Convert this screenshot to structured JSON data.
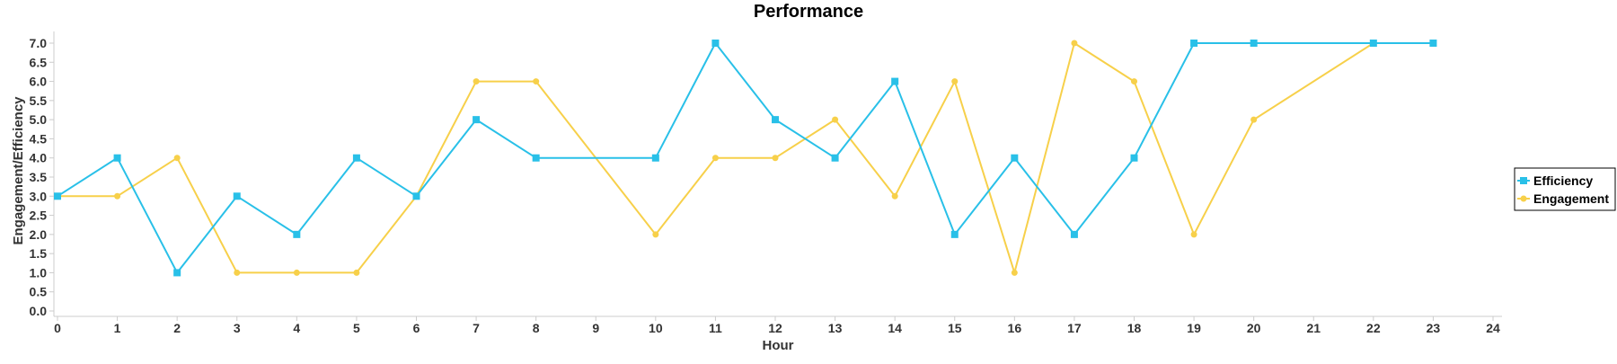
{
  "chart_data": {
    "type": "line",
    "title": "Performance",
    "xlabel": "Hour",
    "ylabel": "Engagement/Efficiency",
    "xlim": [
      0,
      24
    ],
    "ylim": [
      0,
      7.0
    ],
    "x_ticks": [
      0,
      1,
      2,
      3,
      4,
      5,
      6,
      7,
      8,
      9,
      10,
      11,
      12,
      13,
      14,
      15,
      16,
      17,
      18,
      19,
      20,
      21,
      22,
      23,
      24
    ],
    "y_ticks": [
      "0.0",
      "0.5",
      "1.0",
      "1.5",
      "2.0",
      "2.5",
      "3.0",
      "3.5",
      "4.0",
      "4.5",
      "5.0",
      "5.5",
      "6.0",
      "6.5",
      "7.0"
    ],
    "grid": false,
    "legend_position": "right",
    "series": [
      {
        "name": "Efficiency",
        "color": "#29c0e8",
        "marker": "square",
        "x": [
          0,
          1,
          2,
          3,
          4,
          5,
          6,
          7,
          8,
          10,
          11,
          12,
          13,
          14,
          15,
          16,
          17,
          18,
          19,
          20,
          22,
          23
        ],
        "y": [
          3,
          4,
          1,
          3,
          2,
          4,
          3,
          5,
          4,
          4,
          7,
          5,
          4,
          6,
          2,
          4,
          2,
          4,
          7,
          7,
          7,
          7
        ]
      },
      {
        "name": "Engagement",
        "color": "#f7d04a",
        "marker": "circle",
        "x": [
          0,
          1,
          2,
          3,
          4,
          5,
          6,
          7,
          8,
          10,
          11,
          12,
          13,
          14,
          15,
          16,
          17,
          18,
          19,
          20,
          22
        ],
        "y": [
          3,
          3,
          4,
          1,
          1,
          1,
          3,
          6,
          6,
          2,
          4,
          4,
          5,
          3,
          6,
          1,
          7,
          6,
          2,
          5,
          7
        ]
      }
    ]
  }
}
